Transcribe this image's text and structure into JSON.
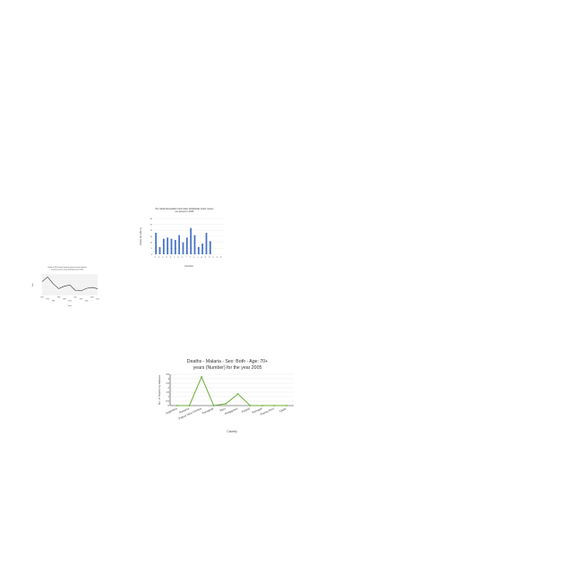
{
  "chart_data": [
    {
      "type": "bar",
      "title": "Per capita Renewable Fresh water withdrawals (cubic meters per person) in 2005",
      "xlabel": "Countries",
      "ylabel": "Volume (in cubic m)",
      "ylim": [
        0,
        30
      ],
      "categories": [
        "A",
        "B",
        "C",
        "D",
        "E",
        "F",
        "G",
        "H",
        "I",
        "J",
        "K",
        "L",
        "M",
        "N",
        "O",
        "P",
        "Q",
        "R"
      ],
      "values": [
        18,
        6,
        13,
        14,
        13,
        12,
        16,
        10,
        14,
        22,
        16,
        6,
        9,
        18,
        11,
        0,
        0,
        0
      ],
      "color": "#4472c4"
    },
    {
      "type": "line",
      "title": "Ratio of 20% lowest income earners to the national income (income share held by lowest 20%)",
      "xlabel": "Years",
      "ylabel": "Ratio",
      "x": [
        "1990",
        "1992",
        "1994",
        "1996",
        "1998",
        "2000",
        "2002",
        "2004",
        "2006",
        "2008",
        "2010"
      ],
      "y": [
        8.5,
        10.0,
        7.8,
        6.2,
        7.0,
        7.4,
        5.6,
        5.5,
        6.3,
        6.6,
        6.2
      ],
      "ylim": [
        4,
        11
      ],
      "color": "#333333"
    },
    {
      "type": "line",
      "title": "Deaths - Malaria - Sex: Both - Age: 70+ years (Number) for the year 2005",
      "xlabel": "Country",
      "ylabel": "No. of Deaths by Malaria",
      "categories": [
        "Argentina",
        "Panama",
        "Papua New Guinea",
        "Paraguay",
        "Peru",
        "Philippines",
        "Poland",
        "Portugal",
        "Puerto Rico",
        "Qatar"
      ],
      "values": [
        0,
        0,
        3.2,
        0,
        0.2,
        1.3,
        0,
        0,
        0,
        0
      ],
      "ylim": [
        0,
        3.5
      ],
      "yticks": [
        "0",
        "0.5",
        "1",
        "1.5",
        "2",
        "2.5",
        "3",
        "3.5"
      ],
      "color": "#6aaf35"
    }
  ]
}
